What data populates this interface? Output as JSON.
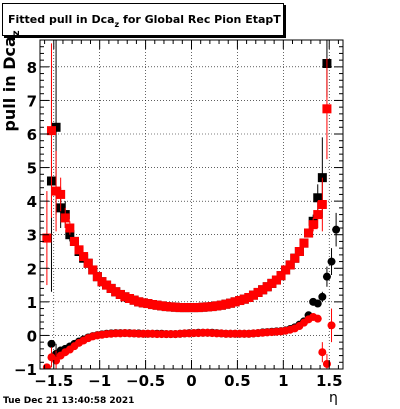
{
  "chart_data": {
    "type": "scatter",
    "title": {
      "main": "Fitted pull in Dca",
      "sub": "z",
      "tail": " for Global Rec Pion EtapT"
    },
    "ylabel": {
      "main": "pull in Dca",
      "sub": "z"
    },
    "xlabel": "η",
    "xlim": [
      -1.65,
      1.65
    ],
    "ylim": [
      -1.0,
      8.8
    ],
    "xticks": [
      -1.5,
      -1,
      -0.5,
      0,
      0.5,
      1,
      1.5
    ],
    "xtick_labels": [
      "−1.5",
      "−1",
      "−0.5",
      "0",
      "0.5",
      "1",
      "1.5"
    ],
    "yticks": [
      -1,
      0,
      1,
      2,
      3,
      4,
      5,
      6,
      7,
      8
    ],
    "ytick_labels": [
      "−1",
      "0",
      "1",
      "2",
      "3",
      "4",
      "5",
      "6",
      "7",
      "8"
    ],
    "grid": true,
    "colors": {
      "black_series": "#000000",
      "red_series": "#ff0000"
    },
    "series": [
      {
        "role": "sigma",
        "color": "black",
        "points": [
          {
            "x": -1.525,
            "y": 4.6,
            "err": 3.3
          },
          {
            "x": -1.475,
            "y": 6.2,
            "err": 2.6
          },
          {
            "x": -1.425,
            "y": 3.8,
            "err": 0.6
          },
          {
            "x": -1.375,
            "y": 3.6,
            "err": 0.4
          },
          {
            "x": -1.325,
            "y": 3.0,
            "err": 0.2
          },
          {
            "x": -1.275,
            "y": 2.8,
            "err": 0.1
          },
          {
            "x": -1.225,
            "y": 2.5
          },
          {
            "x": -1.175,
            "y": 2.3
          },
          {
            "x": -1.125,
            "y": 2.15
          },
          {
            "x": -1.075,
            "y": 1.95
          },
          {
            "x": -1.025,
            "y": 1.75
          },
          {
            "x": -0.975,
            "y": 1.6
          },
          {
            "x": -0.925,
            "y": 1.5
          },
          {
            "x": -0.875,
            "y": 1.4
          },
          {
            "x": -0.825,
            "y": 1.3
          },
          {
            "x": -0.775,
            "y": 1.22
          },
          {
            "x": -0.725,
            "y": 1.15
          },
          {
            "x": -0.675,
            "y": 1.1
          },
          {
            "x": -0.625,
            "y": 1.05
          },
          {
            "x": -0.575,
            "y": 1.0
          },
          {
            "x": -0.525,
            "y": 0.97
          },
          {
            "x": -0.475,
            "y": 0.95
          },
          {
            "x": -0.425,
            "y": 0.92
          },
          {
            "x": -0.375,
            "y": 0.9
          },
          {
            "x": -0.325,
            "y": 0.88
          },
          {
            "x": -0.275,
            "y": 0.86
          },
          {
            "x": -0.225,
            "y": 0.85
          },
          {
            "x": -0.175,
            "y": 0.84
          },
          {
            "x": -0.125,
            "y": 0.83
          },
          {
            "x": -0.075,
            "y": 0.83
          },
          {
            "x": -0.025,
            "y": 0.83
          },
          {
            "x": 0.025,
            "y": 0.83
          },
          {
            "x": 0.075,
            "y": 0.83
          },
          {
            "x": 0.125,
            "y": 0.84
          },
          {
            "x": 0.175,
            "y": 0.85
          },
          {
            "x": 0.225,
            "y": 0.86
          },
          {
            "x": 0.275,
            "y": 0.88
          },
          {
            "x": 0.325,
            "y": 0.9
          },
          {
            "x": 0.375,
            "y": 0.93
          },
          {
            "x": 0.425,
            "y": 0.96
          },
          {
            "x": 0.475,
            "y": 1.0
          },
          {
            "x": 0.525,
            "y": 1.04
          },
          {
            "x": 0.575,
            "y": 1.08
          },
          {
            "x": 0.625,
            "y": 1.13
          },
          {
            "x": 0.675,
            "y": 1.2
          },
          {
            "x": 0.725,
            "y": 1.28
          },
          {
            "x": 0.775,
            "y": 1.36
          },
          {
            "x": 0.825,
            "y": 1.45
          },
          {
            "x": 0.875,
            "y": 1.55
          },
          {
            "x": 0.925,
            "y": 1.65
          },
          {
            "x": 0.975,
            "y": 1.78
          },
          {
            "x": 1.025,
            "y": 1.95
          },
          {
            "x": 1.075,
            "y": 2.1
          },
          {
            "x": 1.125,
            "y": 2.3
          },
          {
            "x": 1.175,
            "y": 2.5
          },
          {
            "x": 1.225,
            "y": 2.75
          },
          {
            "x": 1.275,
            "y": 3.05
          },
          {
            "x": 1.325,
            "y": 3.4,
            "err": 0.2
          },
          {
            "x": 1.375,
            "y": 4.1,
            "err": 0.4
          },
          {
            "x": 1.425,
            "y": 4.7,
            "err": 1.2
          },
          {
            "x": 1.475,
            "y": 8.1,
            "err": 1.0
          }
        ]
      },
      {
        "role": "mean",
        "color": "black",
        "points": [
          {
            "x": -1.525,
            "y": -0.25
          },
          {
            "x": -1.475,
            "y": -0.55,
            "err": 0.3
          },
          {
            "x": -1.425,
            "y": -0.45
          },
          {
            "x": -1.375,
            "y": -0.4
          },
          {
            "x": -1.325,
            "y": -0.33
          },
          {
            "x": -1.275,
            "y": -0.25
          },
          {
            "x": -1.225,
            "y": -0.18
          },
          {
            "x": -1.175,
            "y": -0.12
          },
          {
            "x": -1.125,
            "y": -0.06
          },
          {
            "x": -1.075,
            "y": -0.02
          },
          {
            "x": -1.025,
            "y": 0.01
          },
          {
            "x": -0.975,
            "y": 0.03
          },
          {
            "x": -0.925,
            "y": 0.05
          },
          {
            "x": -0.875,
            "y": 0.06
          },
          {
            "x": -0.825,
            "y": 0.07
          },
          {
            "x": -0.775,
            "y": 0.07
          },
          {
            "x": -0.725,
            "y": 0.07
          },
          {
            "x": -0.675,
            "y": 0.07
          },
          {
            "x": -0.625,
            "y": 0.06
          },
          {
            "x": -0.575,
            "y": 0.06
          },
          {
            "x": -0.525,
            "y": 0.05
          },
          {
            "x": -0.475,
            "y": 0.05
          },
          {
            "x": -0.425,
            "y": 0.05
          },
          {
            "x": -0.375,
            "y": 0.05
          },
          {
            "x": -0.325,
            "y": 0.05
          },
          {
            "x": -0.275,
            "y": 0.04
          },
          {
            "x": -0.225,
            "y": 0.04
          },
          {
            "x": -0.175,
            "y": 0.04
          },
          {
            "x": -0.125,
            "y": 0.05
          },
          {
            "x": -0.075,
            "y": 0.06
          },
          {
            "x": -0.025,
            "y": 0.07
          },
          {
            "x": 0.025,
            "y": 0.07
          },
          {
            "x": 0.075,
            "y": 0.08
          },
          {
            "x": 0.125,
            "y": 0.08
          },
          {
            "x": 0.175,
            "y": 0.08
          },
          {
            "x": 0.225,
            "y": 0.08
          },
          {
            "x": 0.275,
            "y": 0.07
          },
          {
            "x": 0.325,
            "y": 0.06
          },
          {
            "x": 0.375,
            "y": 0.05
          },
          {
            "x": 0.425,
            "y": 0.05
          },
          {
            "x": 0.475,
            "y": 0.05
          },
          {
            "x": 0.525,
            "y": 0.05
          },
          {
            "x": 0.575,
            "y": 0.05
          },
          {
            "x": 0.625,
            "y": 0.05
          },
          {
            "x": 0.675,
            "y": 0.06
          },
          {
            "x": 0.725,
            "y": 0.07
          },
          {
            "x": 0.775,
            "y": 0.09
          },
          {
            "x": 0.825,
            "y": 0.1
          },
          {
            "x": 0.875,
            "y": 0.11
          },
          {
            "x": 0.925,
            "y": 0.12
          },
          {
            "x": 0.975,
            "y": 0.13
          },
          {
            "x": 1.025,
            "y": 0.15
          },
          {
            "x": 1.075,
            "y": 0.19
          },
          {
            "x": 1.125,
            "y": 0.24
          },
          {
            "x": 1.175,
            "y": 0.32
          },
          {
            "x": 1.225,
            "y": 0.42
          },
          {
            "x": 1.275,
            "y": 0.6
          },
          {
            "x": 1.325,
            "y": 1.0,
            "err": 0.1
          },
          {
            "x": 1.375,
            "y": 0.95,
            "err": 0.1
          },
          {
            "x": 1.425,
            "y": 1.15,
            "err": 0.15
          },
          {
            "x": 1.475,
            "y": 1.75,
            "err": 0.3
          },
          {
            "x": 1.525,
            "y": 2.2,
            "err": 0.4
          },
          {
            "x": 1.575,
            "y": 3.15,
            "err": 0.5
          }
        ]
      },
      {
        "role": "sigma",
        "color": "red",
        "points": [
          {
            "x": -1.575,
            "y": 2.9,
            "err": 1.4
          },
          {
            "x": -1.525,
            "y": 6.1,
            "err": 2.6
          },
          {
            "x": -1.475,
            "y": 4.3,
            "err": 1.2
          },
          {
            "x": -1.425,
            "y": 4.2,
            "err": 0.5
          },
          {
            "x": -1.375,
            "y": 3.5,
            "err": 0.3
          },
          {
            "x": -1.325,
            "y": 3.2,
            "err": 0.2
          },
          {
            "x": -1.275,
            "y": 2.8,
            "err": 0.1
          },
          {
            "x": -1.225,
            "y": 2.55
          },
          {
            "x": -1.175,
            "y": 2.35
          },
          {
            "x": -1.125,
            "y": 2.15
          },
          {
            "x": -1.075,
            "y": 1.95
          },
          {
            "x": -1.025,
            "y": 1.75
          },
          {
            "x": -0.975,
            "y": 1.6
          },
          {
            "x": -0.925,
            "y": 1.5
          },
          {
            "x": -0.875,
            "y": 1.4
          },
          {
            "x": -0.825,
            "y": 1.3
          },
          {
            "x": -0.775,
            "y": 1.22
          },
          {
            "x": -0.725,
            "y": 1.15
          },
          {
            "x": -0.675,
            "y": 1.1
          },
          {
            "x": -0.625,
            "y": 1.05
          },
          {
            "x": -0.575,
            "y": 1.0
          },
          {
            "x": -0.525,
            "y": 0.97
          },
          {
            "x": -0.475,
            "y": 0.95
          },
          {
            "x": -0.425,
            "y": 0.92
          },
          {
            "x": -0.375,
            "y": 0.9
          },
          {
            "x": -0.325,
            "y": 0.88
          },
          {
            "x": -0.275,
            "y": 0.86
          },
          {
            "x": -0.225,
            "y": 0.85
          },
          {
            "x": -0.175,
            "y": 0.84
          },
          {
            "x": -0.125,
            "y": 0.83
          },
          {
            "x": -0.075,
            "y": 0.83
          },
          {
            "x": -0.025,
            "y": 0.83
          },
          {
            "x": 0.025,
            "y": 0.83
          },
          {
            "x": 0.075,
            "y": 0.83
          },
          {
            "x": 0.125,
            "y": 0.84
          },
          {
            "x": 0.175,
            "y": 0.85
          },
          {
            "x": 0.225,
            "y": 0.86
          },
          {
            "x": 0.275,
            "y": 0.88
          },
          {
            "x": 0.325,
            "y": 0.9
          },
          {
            "x": 0.375,
            "y": 0.93
          },
          {
            "x": 0.425,
            "y": 0.96
          },
          {
            "x": 0.475,
            "y": 1.0
          },
          {
            "x": 0.525,
            "y": 1.04
          },
          {
            "x": 0.575,
            "y": 1.08
          },
          {
            "x": 0.625,
            "y": 1.13
          },
          {
            "x": 0.675,
            "y": 1.2
          },
          {
            "x": 0.725,
            "y": 1.28
          },
          {
            "x": 0.775,
            "y": 1.36
          },
          {
            "x": 0.825,
            "y": 1.45
          },
          {
            "x": 0.875,
            "y": 1.55
          },
          {
            "x": 0.925,
            "y": 1.65
          },
          {
            "x": 0.975,
            "y": 1.78
          },
          {
            "x": 1.025,
            "y": 1.95
          },
          {
            "x": 1.075,
            "y": 2.1
          },
          {
            "x": 1.125,
            "y": 2.3
          },
          {
            "x": 1.175,
            "y": 2.5
          },
          {
            "x": 1.225,
            "y": 2.75
          },
          {
            "x": 1.275,
            "y": 3.05
          },
          {
            "x": 1.325,
            "y": 3.3,
            "err": 0.2
          },
          {
            "x": 1.375,
            "y": 3.6,
            "err": 0.4
          },
          {
            "x": 1.425,
            "y": 3.9,
            "err": 0.8
          },
          {
            "x": 1.475,
            "y": 6.75,
            "err": 1.5
          }
        ]
      },
      {
        "role": "mean",
        "color": "red",
        "points": [
          {
            "x": -1.575,
            "y": -0.95
          },
          {
            "x": -1.525,
            "y": -0.65,
            "err": 0.3
          },
          {
            "x": -1.475,
            "y": -0.75,
            "err": 0.3
          },
          {
            "x": -1.425,
            "y": -0.6
          },
          {
            "x": -1.375,
            "y": -0.5
          },
          {
            "x": -1.325,
            "y": -0.42
          },
          {
            "x": -1.275,
            "y": -0.32
          },
          {
            "x": -1.225,
            "y": -0.22
          },
          {
            "x": -1.175,
            "y": -0.15
          },
          {
            "x": -1.125,
            "y": -0.08
          },
          {
            "x": -1.075,
            "y": -0.03
          },
          {
            "x": -1.025,
            "y": 0.0
          },
          {
            "x": -0.975,
            "y": 0.02
          },
          {
            "x": -0.925,
            "y": 0.04
          },
          {
            "x": -0.875,
            "y": 0.05
          },
          {
            "x": -0.825,
            "y": 0.06
          },
          {
            "x": -0.775,
            "y": 0.06
          },
          {
            "x": -0.725,
            "y": 0.07
          },
          {
            "x": -0.675,
            "y": 0.06
          },
          {
            "x": -0.625,
            "y": 0.06
          },
          {
            "x": -0.575,
            "y": 0.05
          },
          {
            "x": -0.525,
            "y": 0.05
          },
          {
            "x": -0.475,
            "y": 0.05
          },
          {
            "x": -0.425,
            "y": 0.05
          },
          {
            "x": -0.375,
            "y": 0.04
          },
          {
            "x": -0.325,
            "y": 0.04
          },
          {
            "x": -0.275,
            "y": 0.04
          },
          {
            "x": -0.225,
            "y": 0.04
          },
          {
            "x": -0.175,
            "y": 0.04
          },
          {
            "x": -0.125,
            "y": 0.05
          },
          {
            "x": -0.075,
            "y": 0.06
          },
          {
            "x": -0.025,
            "y": 0.06
          },
          {
            "x": 0.025,
            "y": 0.07
          },
          {
            "x": 0.075,
            "y": 0.07
          },
          {
            "x": 0.125,
            "y": 0.08
          },
          {
            "x": 0.175,
            "y": 0.08
          },
          {
            "x": 0.225,
            "y": 0.07
          },
          {
            "x": 0.275,
            "y": 0.06
          },
          {
            "x": 0.325,
            "y": 0.06
          },
          {
            "x": 0.375,
            "y": 0.05
          },
          {
            "x": 0.425,
            "y": 0.05
          },
          {
            "x": 0.475,
            "y": 0.05
          },
          {
            "x": 0.525,
            "y": 0.05
          },
          {
            "x": 0.575,
            "y": 0.05
          },
          {
            "x": 0.625,
            "y": 0.05
          },
          {
            "x": 0.675,
            "y": 0.06
          },
          {
            "x": 0.725,
            "y": 0.07
          },
          {
            "x": 0.775,
            "y": 0.08
          },
          {
            "x": 0.825,
            "y": 0.09
          },
          {
            "x": 0.875,
            "y": 0.1
          },
          {
            "x": 0.925,
            "y": 0.11
          },
          {
            "x": 0.975,
            "y": 0.12
          },
          {
            "x": 1.025,
            "y": 0.14
          },
          {
            "x": 1.075,
            "y": 0.17
          },
          {
            "x": 1.125,
            "y": 0.21
          },
          {
            "x": 1.175,
            "y": 0.28
          },
          {
            "x": 1.225,
            "y": 0.38
          },
          {
            "x": 1.275,
            "y": 0.48
          },
          {
            "x": 1.325,
            "y": 0.55
          },
          {
            "x": 1.375,
            "y": 0.5
          },
          {
            "x": 1.425,
            "y": -0.5,
            "err": 0.3
          },
          {
            "x": 1.475,
            "y": -0.85,
            "err": 0.3
          },
          {
            "x": 1.525,
            "y": 0.3,
            "err": 0.5
          }
        ]
      }
    ]
  },
  "timestamp": "Tue Dec 21 13:40:58 2021"
}
